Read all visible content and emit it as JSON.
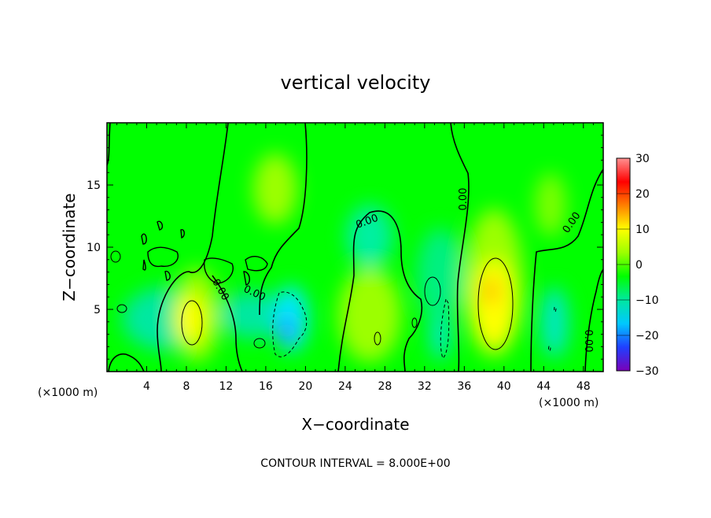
{
  "chart_data": {
    "type": "heatmap",
    "title": "vertical velocity",
    "xlabel": "X−coordinate",
    "ylabel": "Z−coordinate",
    "x_unit_left": "(×1000 m)",
    "x_unit_right": "(×1000 m)",
    "footer": "CONTOUR INTERVAL = 8.000E+00",
    "xlim": [
      0,
      50
    ],
    "ylim": [
      0,
      20
    ],
    "x_ticks": [
      "4",
      "8",
      "12",
      "16",
      "20",
      "24",
      "28",
      "32",
      "36",
      "40",
      "44",
      "48"
    ],
    "y_ticks": [
      "5",
      "10",
      "15"
    ],
    "colorbar": {
      "min": -30,
      "max": 30,
      "ticks": [
        "30",
        "20",
        "10",
        "0",
        "−10",
        "−20",
        "−30"
      ],
      "colors": [
        "#7a00b8",
        "#2040ff",
        "#00c8ff",
        "#00e8a0",
        "#00ff00",
        "#9cff00",
        "#ffff00",
        "#ff8000",
        "#ff0000",
        "#ff9090"
      ]
    },
    "contour_interval": 8,
    "contour_labels": [
      "0.00",
      "0.00",
      "0.00",
      "0.00",
      "0.00",
      "0.00"
    ],
    "features": [
      {
        "kind": "updraft",
        "x": 8.7,
        "z": 4.5,
        "value": 12
      },
      {
        "kind": "updraft",
        "x": 39,
        "z": 6.5,
        "value": 15
      },
      {
        "kind": "downdraft",
        "x": 18,
        "z": 3,
        "value": -14
      },
      {
        "kind": "updraft",
        "x": 16.5,
        "z": 15,
        "value": 4
      },
      {
        "kind": "updraft",
        "x": 27,
        "z": 6,
        "value": 4
      },
      {
        "kind": "downdraft",
        "x": 33.5,
        "z": 3.5,
        "value": -8
      },
      {
        "kind": "downdraft",
        "x": 45.5,
        "z": 5,
        "value": -5
      }
    ]
  }
}
